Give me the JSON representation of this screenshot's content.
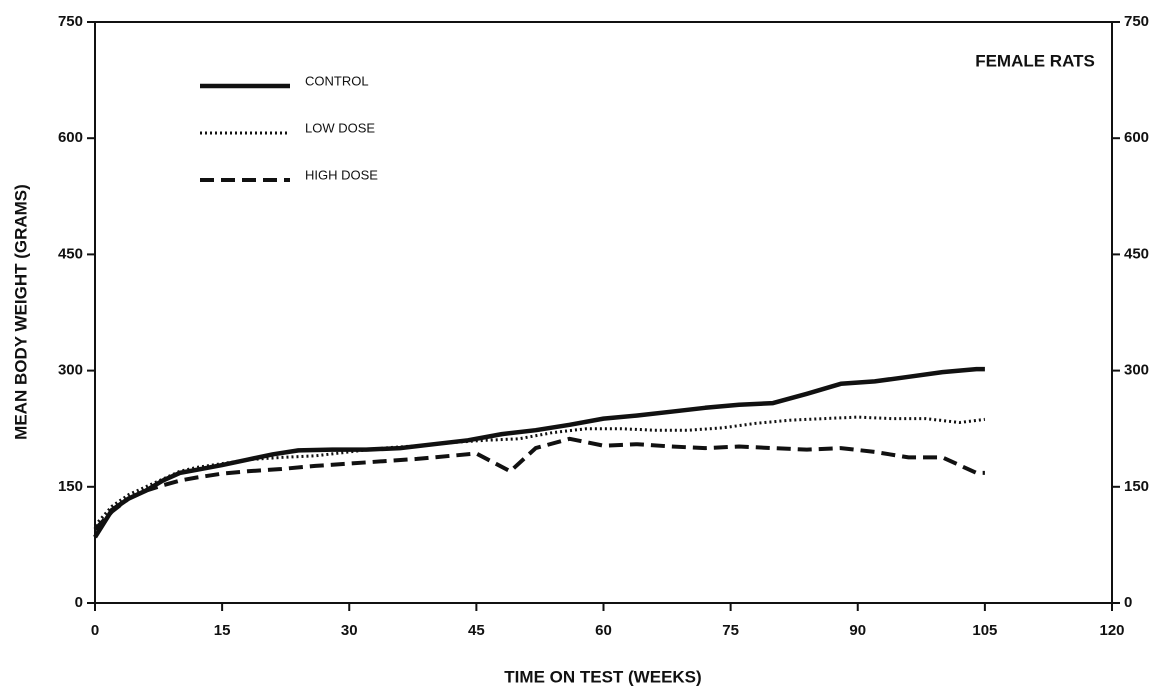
{
  "chart_data": {
    "type": "line",
    "title": "FEMALE RATS",
    "x_label": "TIME ON TEST (WEEKS)",
    "y_label": "MEAN BODY WEIGHT (GRAMS)",
    "xlim": [
      0,
      120
    ],
    "xticks": [
      0,
      15,
      30,
      45,
      60,
      75,
      90,
      105,
      120
    ],
    "ylim": [
      0,
      750
    ],
    "yticks": [
      0,
      150,
      300,
      450,
      600,
      750
    ],
    "y2lim": [
      0,
      750
    ],
    "y2ticks": [
      0,
      150,
      300,
      450,
      600,
      750
    ],
    "legend": "upper left",
    "series": [
      {
        "name": "CONTROL",
        "color": "#111111",
        "style": "solid",
        "x": [
          0,
          2,
          4,
          6,
          8,
          10,
          12,
          15,
          18,
          21,
          24,
          28,
          32,
          36,
          40,
          44,
          48,
          52,
          56,
          60,
          64,
          68,
          72,
          76,
          80,
          84,
          88,
          92,
          96,
          100,
          104,
          105
        ],
        "values": [
          85,
          120,
          135,
          145,
          158,
          168,
          172,
          178,
          185,
          192,
          197,
          198,
          198,
          200,
          205,
          210,
          218,
          223,
          230,
          238,
          242,
          247,
          252,
          256,
          258,
          270,
          283,
          286,
          292,
          298,
          302,
          302
        ]
      },
      {
        "name": "LOW DOSE",
        "color": "#111111",
        "style": "dotted",
        "x": [
          0,
          2,
          4,
          6,
          8,
          10,
          12,
          15,
          18,
          22,
          26,
          30,
          34,
          38,
          42,
          46,
          50,
          54,
          58,
          62,
          66,
          70,
          74,
          78,
          82,
          86,
          90,
          94,
          98,
          102,
          105
        ],
        "values": [
          100,
          125,
          140,
          150,
          160,
          170,
          175,
          180,
          185,
          188,
          190,
          195,
          200,
          203,
          207,
          210,
          212,
          220,
          225,
          225,
          223,
          223,
          226,
          232,
          236,
          238,
          240,
          238,
          238,
          233,
          237
        ]
      },
      {
        "name": "HIGH DOSE",
        "color": "#111111",
        "style": "dashed",
        "x": [
          0,
          2,
          4,
          6,
          8,
          10,
          12,
          15,
          18,
          22,
          26,
          30,
          34,
          38,
          42,
          45,
          49,
          52,
          56,
          60,
          64,
          68,
          72,
          76,
          80,
          84,
          88,
          92,
          96,
          100,
          104,
          105
        ],
        "values": [
          95,
          118,
          135,
          145,
          152,
          158,
          162,
          167,
          170,
          173,
          177,
          180,
          183,
          186,
          190,
          193,
          170,
          200,
          212,
          203,
          205,
          202,
          200,
          202,
          200,
          198,
          200,
          195,
          188,
          188,
          168,
          168
        ]
      }
    ]
  }
}
